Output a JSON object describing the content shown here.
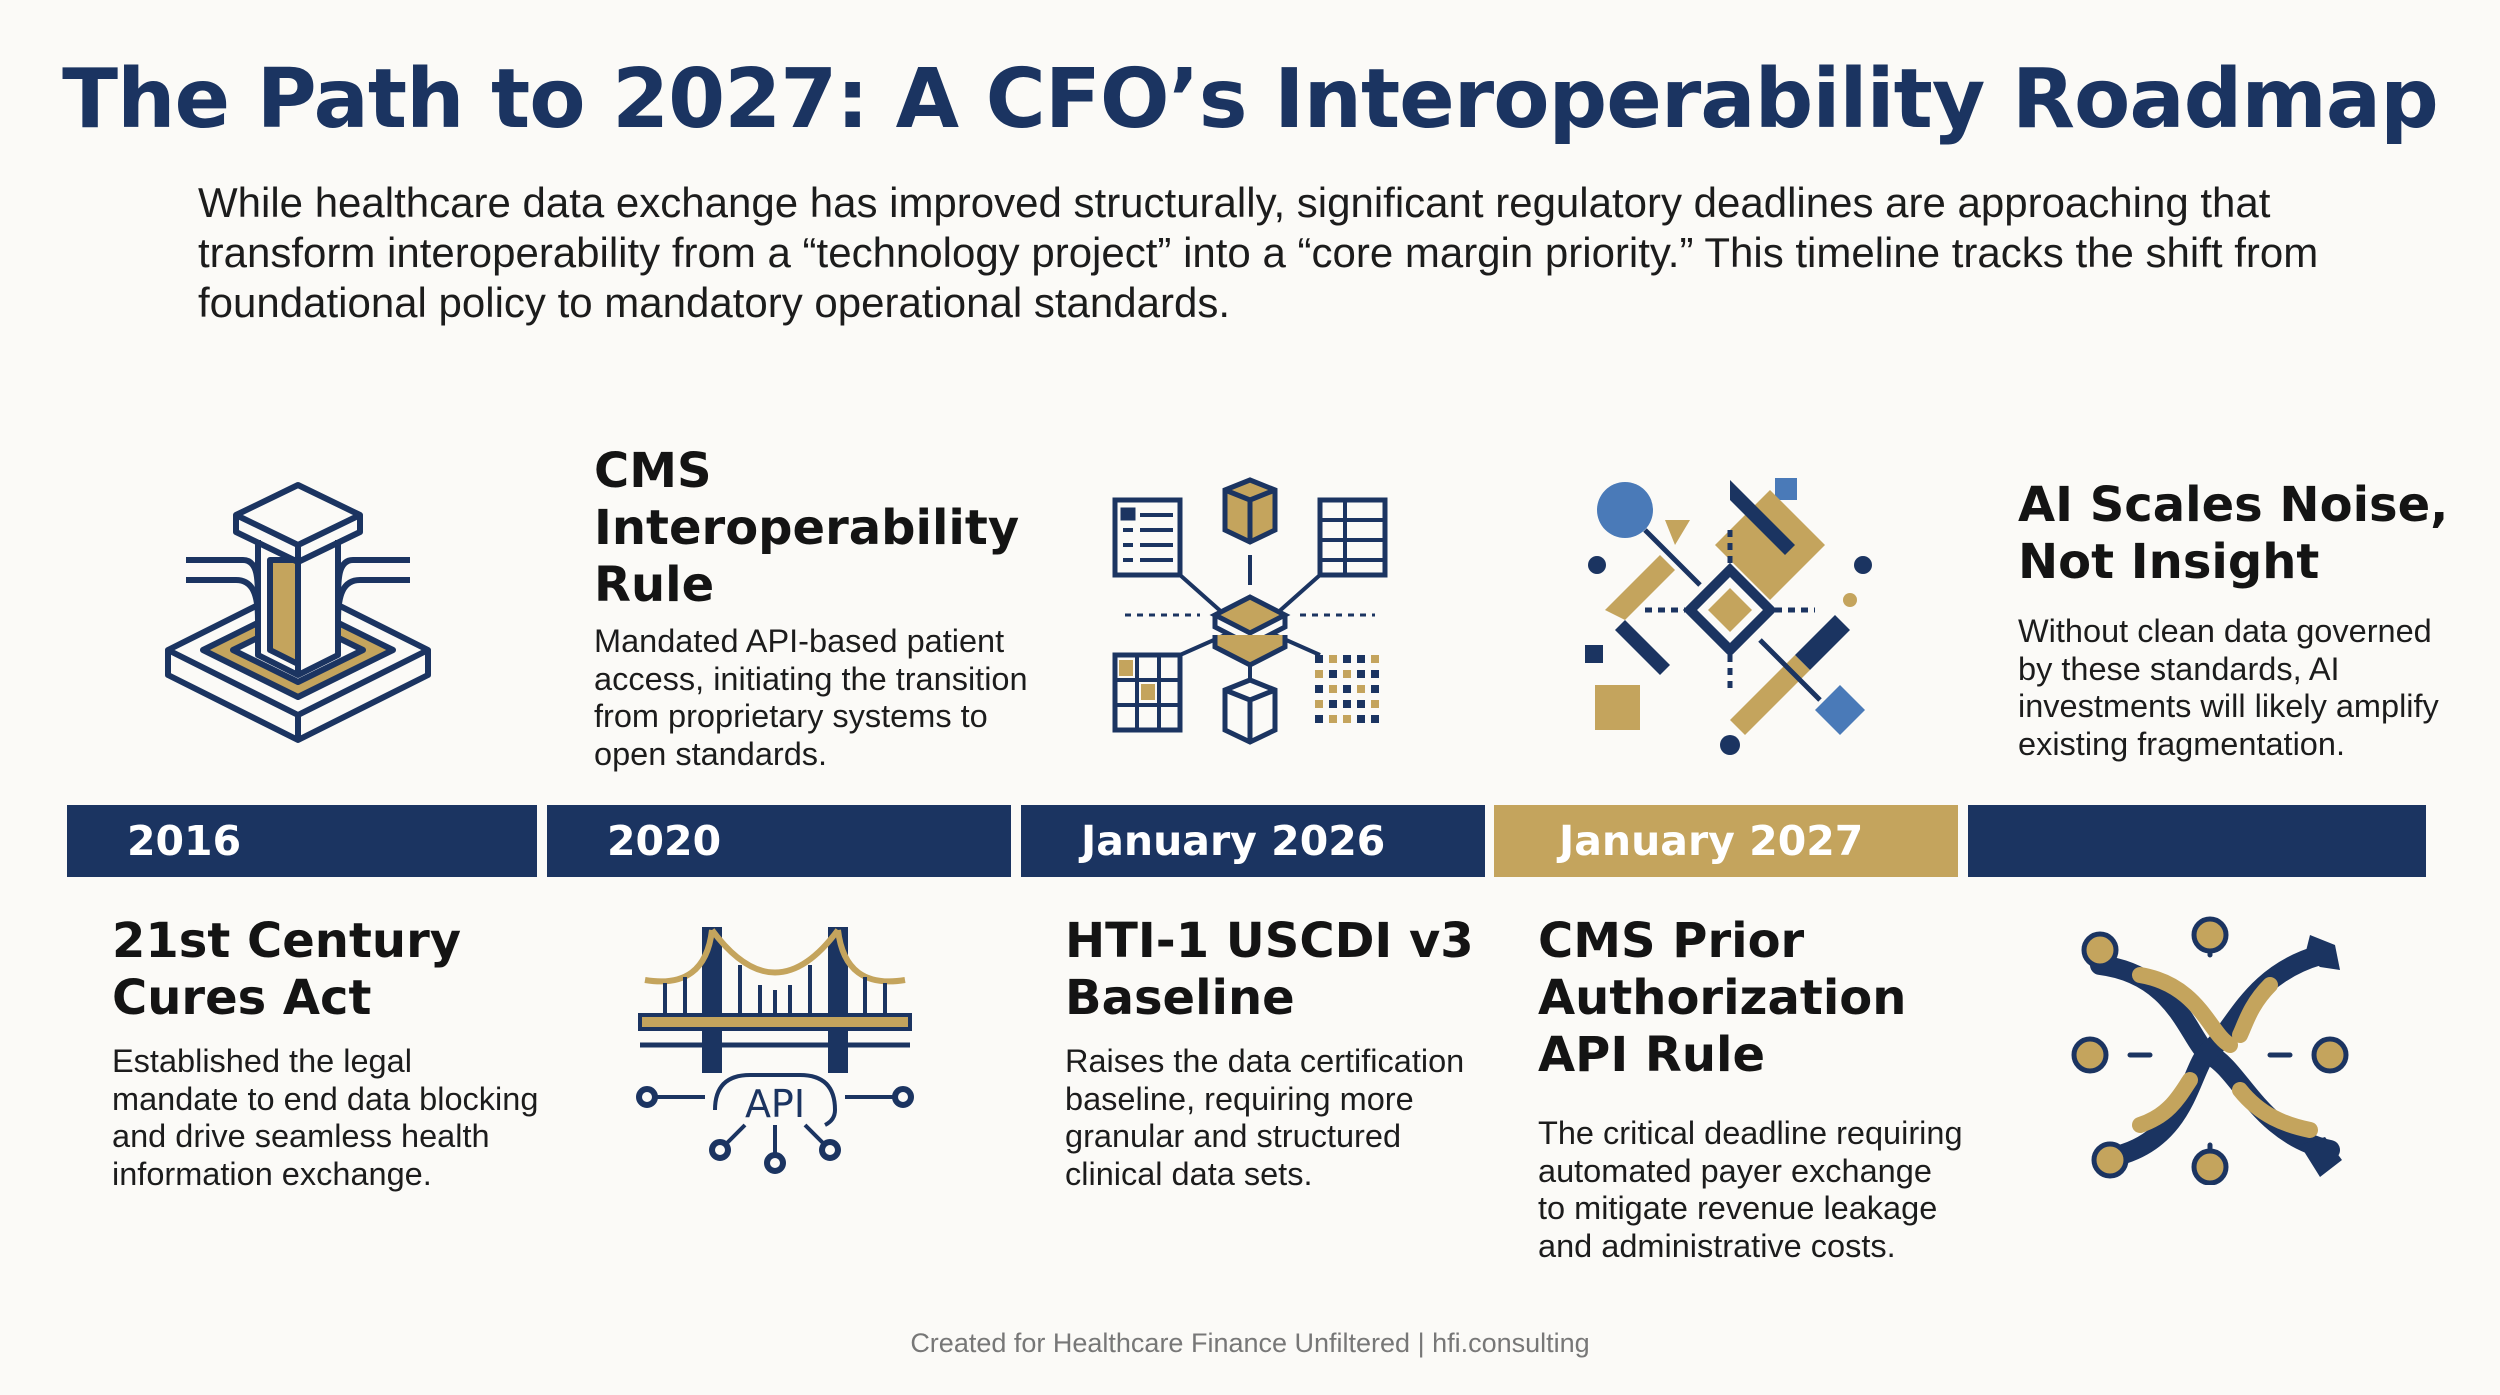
{
  "title": "The Path to 2027: A CFO’s Interoperability Roadmap",
  "intro": "While healthcare data exchange has improved structurally, significant regulatory deadlines are approaching that transform interoperability from a “technology project” into a “core margin priority.” This timeline tracks the shift from foundational policy to mandatory operational standards.",
  "timeline": {
    "years": [
      "2016",
      "2020",
      "January 2026",
      "January 2027",
      ""
    ]
  },
  "milestones": [
    {
      "heading": "21st Century Cures Act",
      "text": "Established the legal mandate to end data blocking and drive seamless health information exchange.",
      "icon": "foundation-pillar-icon"
    },
    {
      "heading": "CMS Interoperability Rule",
      "text": "Mandated API-based patient access, initiating the transition from proprietary systems to open standards.",
      "icon": "api-bridge-icon",
      "icon_label": "API"
    },
    {
      "heading": "HTI-1 USCDI v3 Baseline",
      "text": "Raises the data certification baseline, requiring more granular and structured clinical data sets.",
      "icon": "data-network-icon"
    },
    {
      "heading": "CMS Prior Authorization API Rule",
      "text": "The critical deadline requiring automated payer exchange to mitigate revenue leakage and administrative costs.",
      "icon": "diamond-network-icon"
    },
    {
      "heading": "AI Scales Noise, Not Insight",
      "text": "Without clean data governed by these standards, AI investments will likely amplify existing fragmentation.",
      "icon": "tangled-nodes-icon"
    }
  ],
  "footer": "Created for Healthcare Finance Unfiltered | hfi.consulting",
  "colors": {
    "navy": "#1b3461",
    "gold": "#c4a45d",
    "blue": "#4a7ab8",
    "background": "#fbfaf7"
  }
}
